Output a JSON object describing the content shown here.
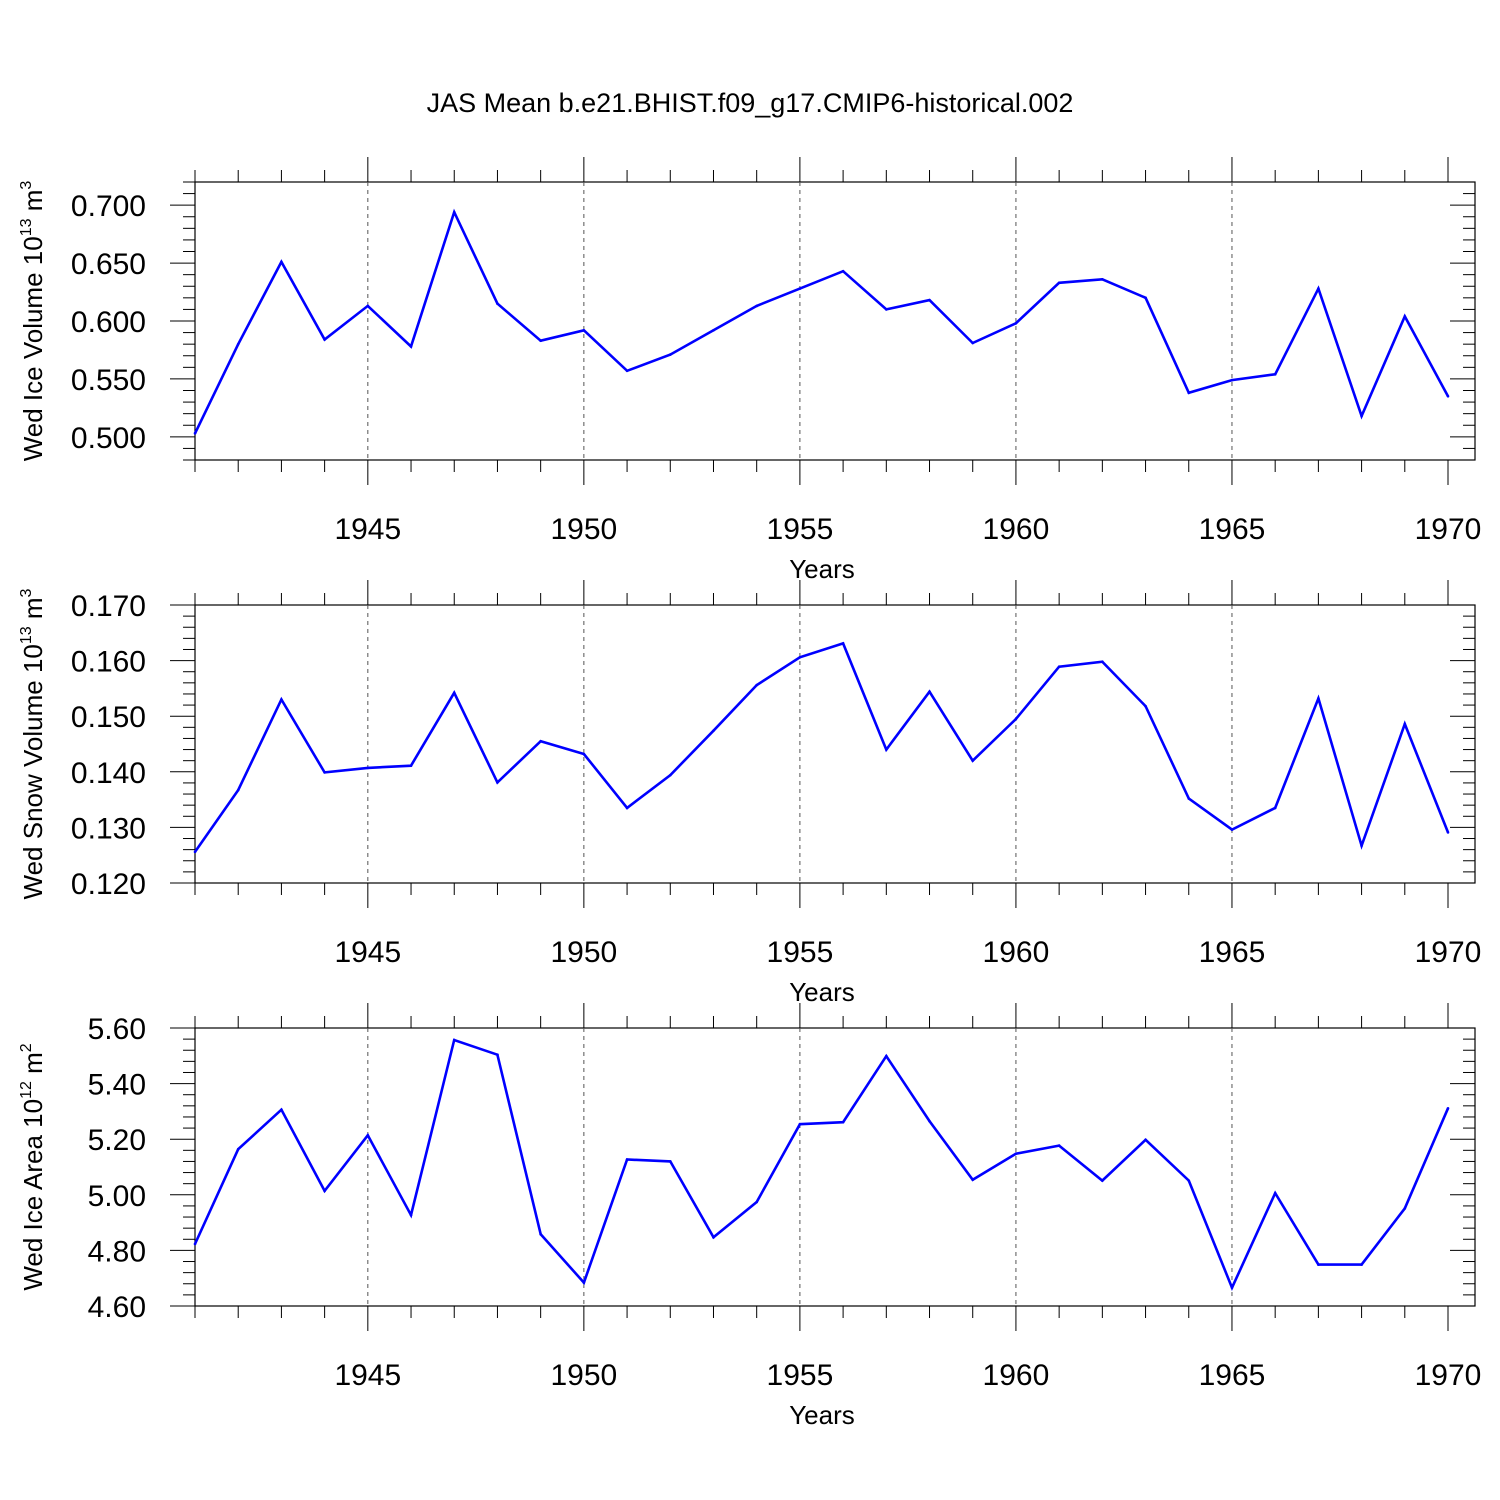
{
  "title": "JAS Mean b.e21.BHIST.f09_g17.CMIP6-historical.002",
  "line_color": "#0000ff",
  "chart_data": [
    {
      "type": "line",
      "ylabel_main": "Wed Ice Volume 10",
      "ylabel_exp": "13",
      "ylabel_unit": " m",
      "ylabel_unit_exp": "3",
      "xlabel": "Years",
      "xlim": [
        1941,
        1970
      ],
      "ylim": [
        0.48,
        0.72
      ],
      "yticks": [
        0.5,
        0.55,
        0.6,
        0.65,
        0.7
      ],
      "yticklabels": [
        "0.500",
        "0.550",
        "0.600",
        "0.650",
        "0.700"
      ],
      "xticks": [
        1945,
        1950,
        1955,
        1960,
        1965,
        1970
      ],
      "xticklabels": [
        "1945",
        "1950",
        "1955",
        "1960",
        "1965",
        "1970"
      ],
      "grid": "vertical dashed at major x ticks",
      "x": [
        1941,
        1942,
        1943,
        1944,
        1945,
        1946,
        1947,
        1948,
        1949,
        1950,
        1951,
        1952,
        1953,
        1954,
        1955,
        1956,
        1957,
        1958,
        1959,
        1960,
        1961,
        1962,
        1963,
        1964,
        1965,
        1966,
        1967,
        1968,
        1969,
        1970
      ],
      "values": [
        0.503,
        0.58,
        0.651,
        0.584,
        0.613,
        0.578,
        0.694,
        0.615,
        0.583,
        0.592,
        0.557,
        0.571,
        0.592,
        0.613,
        0.628,
        0.643,
        0.61,
        0.618,
        0.581,
        0.598,
        0.633,
        0.636,
        0.62,
        0.538,
        0.549,
        0.554,
        0.628,
        0.518,
        0.604,
        0.535
      ]
    },
    {
      "type": "line",
      "ylabel_main": "Wed Snow Volume 10",
      "ylabel_exp": "13",
      "ylabel_unit": " m",
      "ylabel_unit_exp": "3",
      "xlabel": "Years",
      "xlim": [
        1941,
        1970
      ],
      "ylim": [
        0.12,
        0.17
      ],
      "yticks": [
        0.12,
        0.13,
        0.14,
        0.15,
        0.16,
        0.17
      ],
      "yticklabels": [
        "0.120",
        "0.130",
        "0.140",
        "0.150",
        "0.160",
        "0.170"
      ],
      "xticks": [
        1945,
        1950,
        1955,
        1960,
        1965,
        1970
      ],
      "xticklabels": [
        "1945",
        "1950",
        "1955",
        "1960",
        "1965",
        "1970"
      ],
      "grid": "vertical dashed at major x ticks",
      "x": [
        1941,
        1942,
        1943,
        1944,
        1945,
        1946,
        1947,
        1948,
        1949,
        1950,
        1951,
        1952,
        1953,
        1954,
        1955,
        1956,
        1957,
        1958,
        1959,
        1960,
        1961,
        1962,
        1963,
        1964,
        1965,
        1966,
        1967,
        1968,
        1969,
        1970
      ],
      "values": [
        0.1256,
        0.1367,
        0.153,
        0.1399,
        0.1407,
        0.1411,
        0.1542,
        0.1381,
        0.1455,
        0.1432,
        0.1335,
        0.1394,
        0.1474,
        0.1556,
        0.1606,
        0.1631,
        0.144,
        0.1544,
        0.142,
        0.1495,
        0.1589,
        0.1598,
        0.1518,
        0.1352,
        0.1296,
        0.1335,
        0.1532,
        0.1267,
        0.1486,
        0.1291
      ]
    },
    {
      "type": "line",
      "ylabel_main": "Wed Ice Area 10",
      "ylabel_exp": "12",
      "ylabel_unit": " m",
      "ylabel_unit_exp": "2",
      "xlabel": "Years",
      "xlim": [
        1941,
        1970
      ],
      "ylim": [
        4.6,
        5.6
      ],
      "yticks": [
        4.6,
        4.8,
        5.0,
        5.2,
        5.4,
        5.6
      ],
      "yticklabels": [
        "4.60",
        "4.80",
        "5.00",
        "5.20",
        "5.40",
        "5.60"
      ],
      "xticks": [
        1945,
        1950,
        1955,
        1960,
        1965,
        1970
      ],
      "xticklabels": [
        "1945",
        "1950",
        "1955",
        "1960",
        "1965",
        "1970"
      ],
      "grid": "vertical dashed at major x ticks",
      "x": [
        1941,
        1942,
        1943,
        1944,
        1945,
        1946,
        1947,
        1948,
        1949,
        1950,
        1951,
        1952,
        1953,
        1954,
        1955,
        1956,
        1957,
        1958,
        1959,
        1960,
        1961,
        1962,
        1963,
        1964,
        1965,
        1966,
        1967,
        1968,
        1969,
        1970
      ],
      "values": [
        4.823,
        5.164,
        5.306,
        5.014,
        5.214,
        4.927,
        5.557,
        5.504,
        4.858,
        4.684,
        5.127,
        5.12,
        4.847,
        4.974,
        5.254,
        5.261,
        5.499,
        5.265,
        5.054,
        5.148,
        5.177,
        5.051,
        5.198,
        5.051,
        4.666,
        5.006,
        4.749,
        4.749,
        4.951,
        5.311
      ]
    }
  ]
}
